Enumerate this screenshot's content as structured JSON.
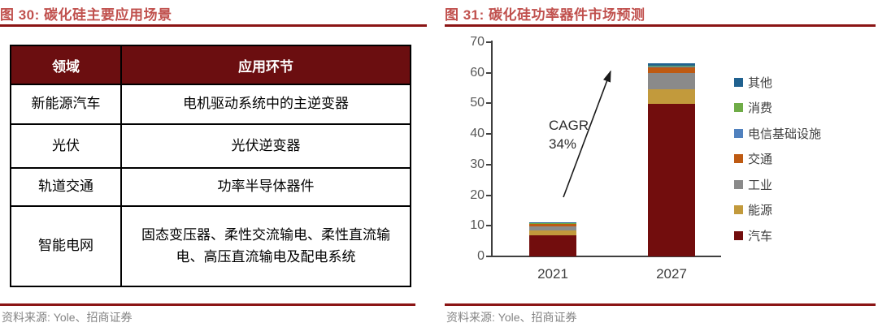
{
  "left_panel": {
    "title": "图 30: 碳化硅主要应用场景",
    "source": "资料来源: Yole、招商证券",
    "table": {
      "headers": [
        "领域",
        "应用环节"
      ],
      "rows": [
        {
          "field": "新能源汽车",
          "application": "电机驱动系统中的主逆变器"
        },
        {
          "field": "光伏",
          "application": "光伏逆变器"
        },
        {
          "field": "轨道交通",
          "application": "功率半导体器件"
        },
        {
          "field": "智能电网",
          "application": "固态变压器、柔性交流输电、柔性直流输电、高压直流输电及配电系统"
        }
      ]
    }
  },
  "right_panel": {
    "title": "图 31: 碳化硅功率器件市场预测",
    "source": "资料来源: Yole、招商证券",
    "annotation_line1": "CAGR",
    "annotation_line2": "34%"
  },
  "chart_data": {
    "type": "bar",
    "stacked": true,
    "title": "碳化硅功率器件市场预测",
    "categories": [
      "2021",
      "2027"
    ],
    "series": [
      {
        "name": "汽车",
        "color": "#720D0D",
        "values": [
          6.8,
          49.8
        ]
      },
      {
        "name": "能源",
        "color": "#C29A3C",
        "values": [
          1.8,
          4.8
        ]
      },
      {
        "name": "工业",
        "color": "#8A8A8A",
        "values": [
          1.1,
          5.3
        ]
      },
      {
        "name": "交通",
        "color": "#BE5A12",
        "values": [
          0.8,
          1.9
        ]
      },
      {
        "name": "电信基础设施",
        "color": "#5081BE",
        "values": [
          0.3,
          0.4
        ]
      },
      {
        "name": "消费",
        "color": "#6FAC47",
        "values": [
          0.1,
          0.2
        ]
      },
      {
        "name": "其他",
        "color": "#20618F",
        "values": [
          0.2,
          0.7
        ]
      }
    ],
    "approx_totals": [
      11,
      63
    ],
    "ylim": [
      0,
      70
    ],
    "ytick_step": 10,
    "grid": false,
    "legend_position": "right",
    "legend_top_to_bottom": [
      "其他",
      "消费",
      "电信基础设施",
      "交通",
      "工业",
      "能源",
      "汽车"
    ],
    "annotation": "CAGR 34%"
  },
  "colors": {
    "title_accent": "#C0504D",
    "rule_dark_red": "#8B1414",
    "table_header_bg": "#6B0E10",
    "source_text": "#848484",
    "axis": "#3f3f3f"
  }
}
